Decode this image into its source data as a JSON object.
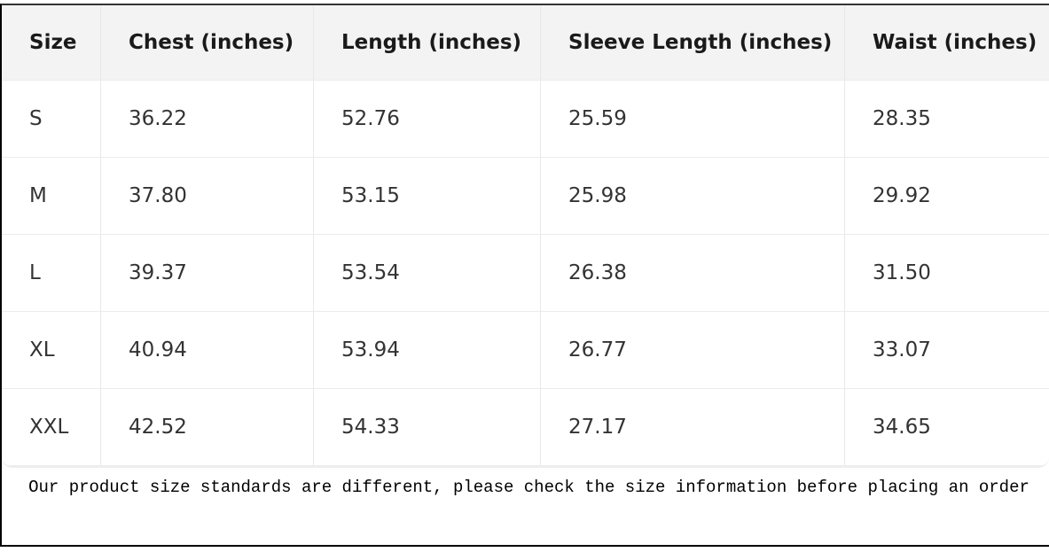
{
  "table": {
    "headers": [
      "Size",
      "Chest (inches)",
      "Length (inches)",
      "Sleeve Length (inches)",
      "Waist (inches)"
    ],
    "rows": [
      [
        "S",
        "36.22",
        "52.76",
        "25.59",
        "28.35"
      ],
      [
        "M",
        "37.80",
        "53.15",
        "25.98",
        "29.92"
      ],
      [
        "L",
        "39.37",
        "53.54",
        "26.38",
        "31.50"
      ],
      [
        "XL",
        "40.94",
        "53.94",
        "26.77",
        "33.07"
      ],
      [
        "XXL",
        "42.52",
        "54.33",
        "27.17",
        "34.65"
      ]
    ]
  },
  "note": "Our product size standards are different, please check the size information before placing an order"
}
